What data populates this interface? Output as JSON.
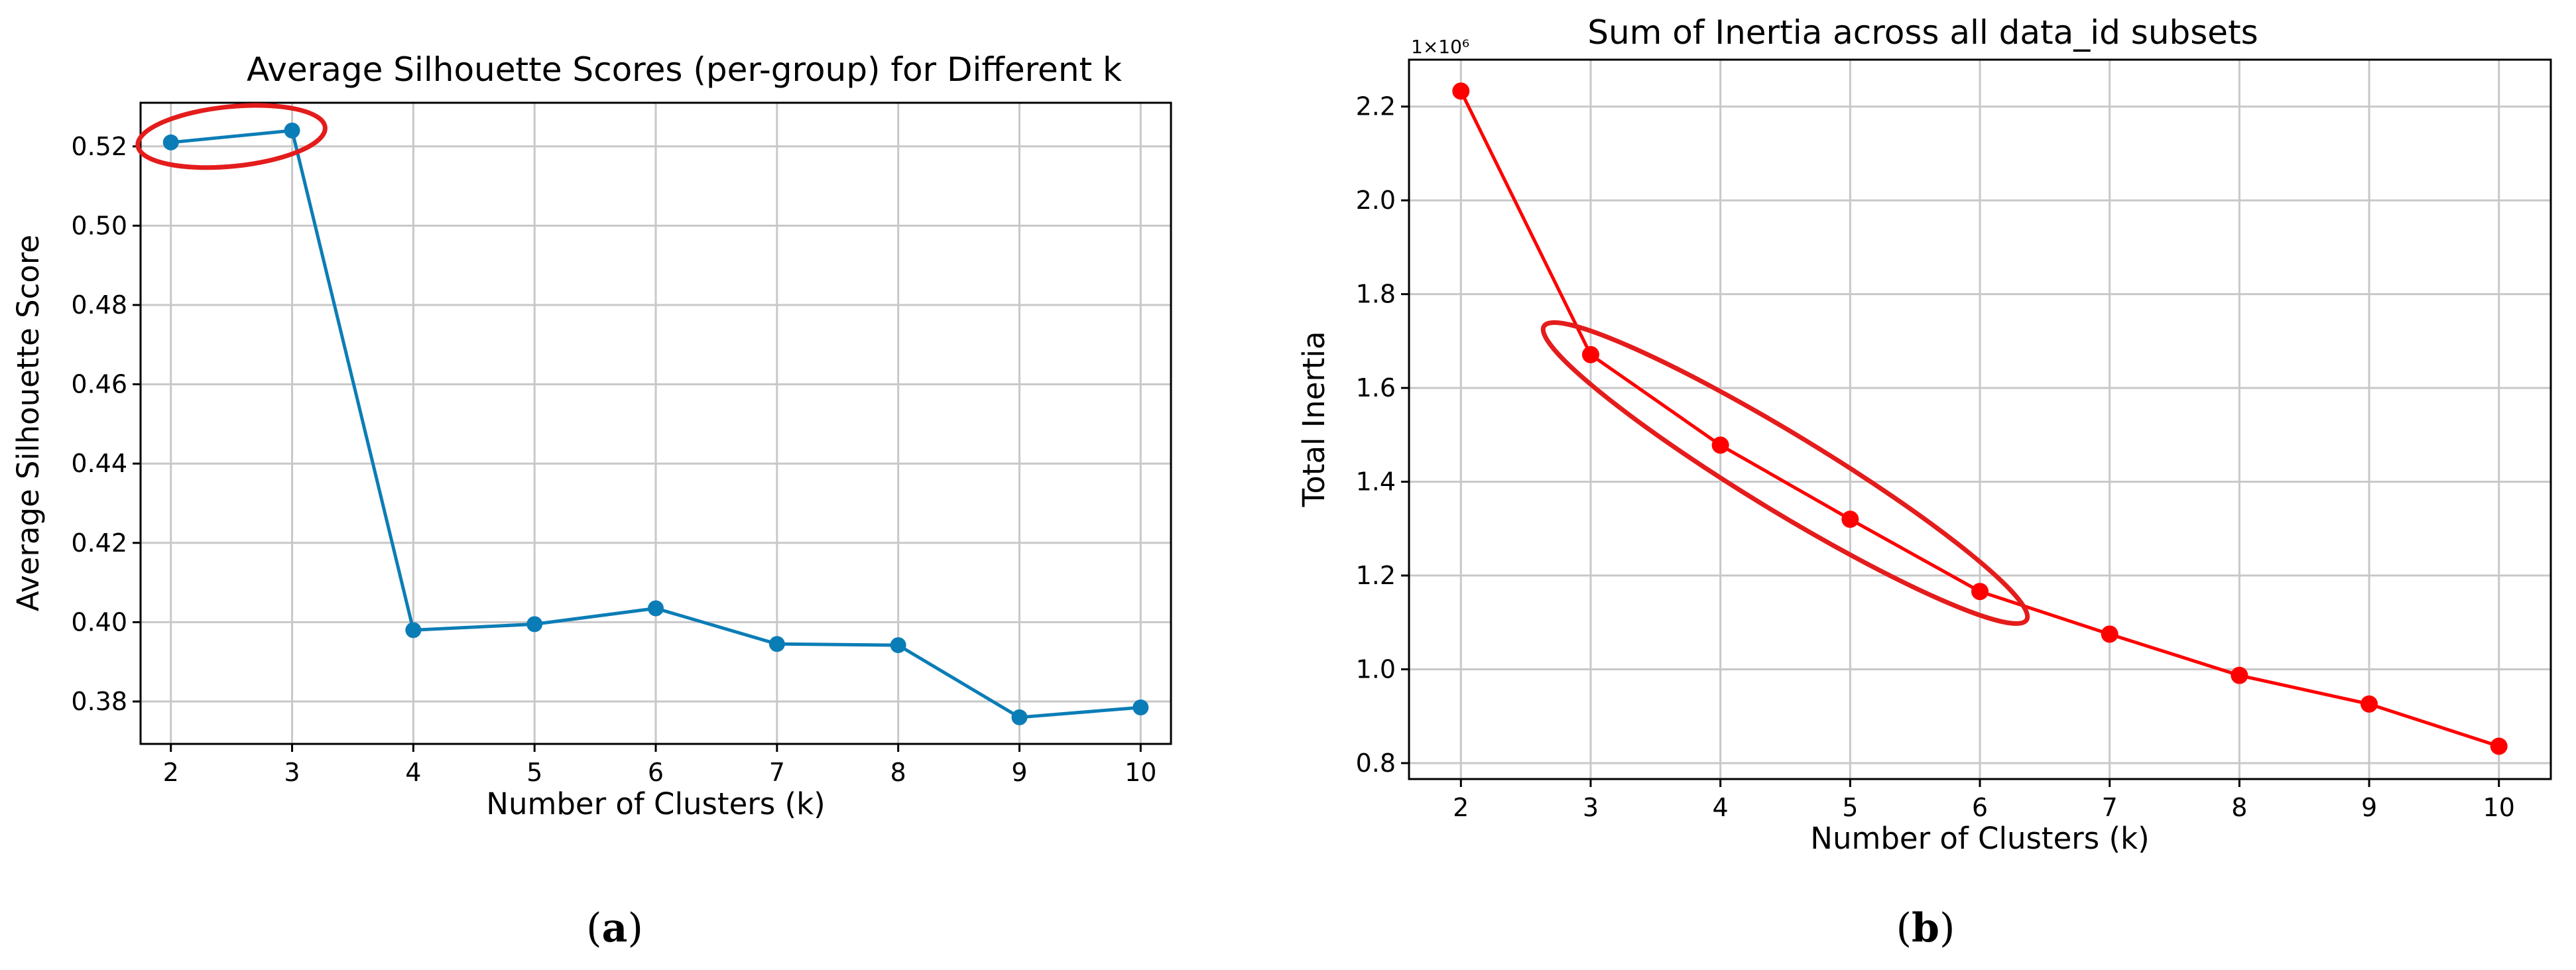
{
  "chart_data": [
    {
      "type": "line",
      "title": "Average Silhouette Scores (per-group) for Different k",
      "xlabel": "Number of Clusters (k)",
      "ylabel": "Average Silhouette Score",
      "x": [
        2,
        3,
        4,
        5,
        6,
        7,
        8,
        9,
        10
      ],
      "series": [
        {
          "values": [
            0.521,
            0.524,
            0.398,
            0.3995,
            0.4035,
            0.3945,
            0.3942,
            0.376,
            0.3785
          ],
          "color": "#0b7db6"
        }
      ],
      "xlim": [
        1.75,
        10.25
      ],
      "ylim": [
        0.3693,
        0.531
      ],
      "xticks": [
        "2",
        "3",
        "4",
        "5",
        "6",
        "7",
        "8",
        "9",
        "10"
      ],
      "yticks": [
        "0.38",
        "0.40",
        "0.42",
        "0.44",
        "0.46",
        "0.48",
        "0.50",
        "0.52"
      ],
      "grid": true,
      "highlight": {
        "shape": "ellipse",
        "color": "#e41c1c",
        "around_x": [
          2,
          3
        ]
      },
      "caption": {
        "open": "(",
        "letter": "a",
        "close": ")"
      }
    },
    {
      "type": "line",
      "title": "Sum of Inertia across all data_id subsets",
      "xlabel": "Number of Clusters (k)",
      "ylabel": "Total Inertia",
      "offset_label": "1×10⁶",
      "x": [
        2,
        3,
        4,
        5,
        6,
        7,
        8,
        9,
        10
      ],
      "series": [
        {
          "values": [
            2.233,
            1.671,
            1.478,
            1.32,
            1.166,
            1.075,
            0.987,
            0.926,
            0.836
          ],
          "color": "#ff0000"
        }
      ],
      "xlim": [
        1.6,
        10.4
      ],
      "ylim": [
        0.766,
        2.3
      ],
      "xticks": [
        "2",
        "3",
        "4",
        "5",
        "6",
        "7",
        "8",
        "9",
        "10"
      ],
      "yticks": [
        "0.8",
        "1.0",
        "1.2",
        "1.4",
        "1.6",
        "1.8",
        "2.0",
        "2.2"
      ],
      "grid": true,
      "highlight": {
        "shape": "ellipse",
        "color": "#e41c1c",
        "around_x": [
          3,
          6
        ]
      },
      "caption": {
        "open": "(",
        "letter": "b",
        "close": ")"
      }
    }
  ]
}
